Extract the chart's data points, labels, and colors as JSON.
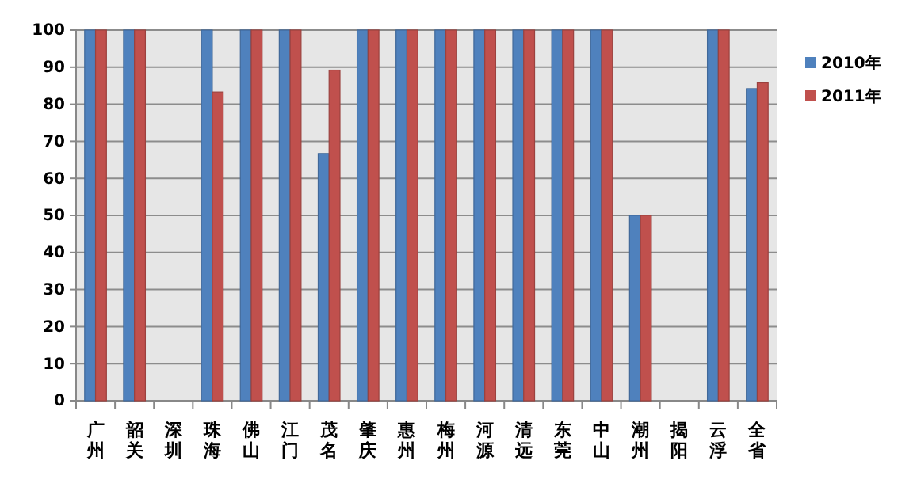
{
  "chart_data": {
    "type": "bar",
    "categories": [
      "广州",
      "韶关",
      "深圳",
      "珠海",
      "佛山",
      "江门",
      "茂名",
      "肇庆",
      "惠州",
      "梅州",
      "河源",
      "清远",
      "东莞",
      "中山",
      "潮州",
      "揭阳",
      "云浮",
      "全省"
    ],
    "series": [
      {
        "name": "2010年",
        "color": "#4f81bd",
        "values": [
          100,
          100,
          null,
          100,
          100,
          100,
          66.7,
          100,
          100,
          100,
          100,
          100,
          100,
          100,
          50,
          null,
          100,
          84.2
        ]
      },
      {
        "name": "2011年",
        "color": "#c0504d",
        "values": [
          100,
          100,
          null,
          83.3,
          100,
          100,
          89.2,
          100,
          100,
          100,
          100,
          100,
          100,
          100,
          50,
          null,
          100,
          85.8
        ]
      }
    ],
    "ylim": [
      0,
      100
    ],
    "yticks": [
      0,
      10,
      20,
      30,
      40,
      50,
      60,
      70,
      80,
      90,
      100
    ],
    "grid": "y",
    "legend": "right"
  }
}
